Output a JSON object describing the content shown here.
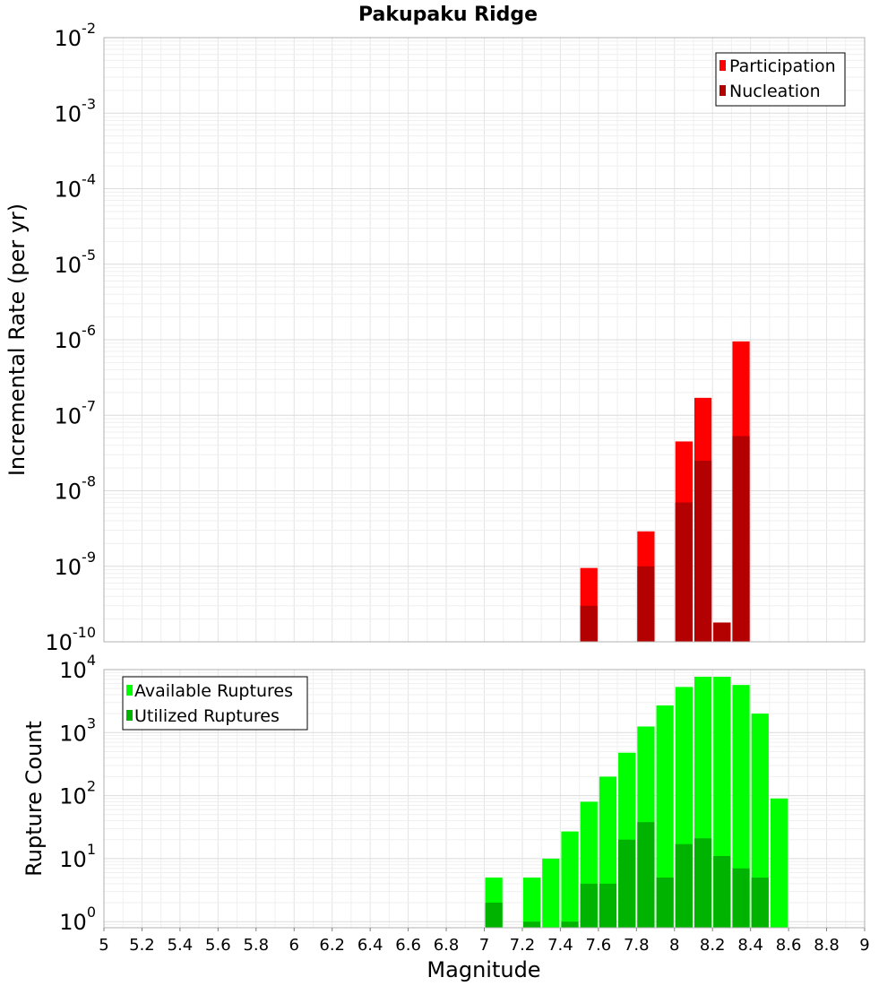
{
  "chart_data": [
    {
      "type": "bar",
      "title": "Pakupaku Ridge",
      "xlabel": "",
      "ylabel": "Incremental Rate (per yr)",
      "y_scale": "log",
      "ylim": [
        1e-10,
        0.01
      ],
      "xlim": [
        5,
        9
      ],
      "grid": true,
      "legend_position": "top-right",
      "yticks": [
        {
          "base": "10",
          "exp": "-2"
        },
        {
          "base": "10",
          "exp": "-3"
        },
        {
          "base": "10",
          "exp": "-4"
        },
        {
          "base": "10",
          "exp": "-5"
        },
        {
          "base": "10",
          "exp": "-6"
        },
        {
          "base": "10",
          "exp": "-7"
        },
        {
          "base": "10",
          "exp": "-8"
        },
        {
          "base": "10",
          "exp": "-9"
        },
        {
          "base": "10",
          "exp": "-10"
        }
      ],
      "bin_width": 0.1,
      "series": [
        {
          "name": "Participation",
          "color": "#ff0000",
          "x": [
            7.55,
            7.85,
            8.05,
            8.15,
            8.25,
            8.35
          ],
          "values": [
            9.5e-10,
            2.9e-09,
            4.5e-08,
            1.7e-07,
            1.8e-10,
            9.5e-07
          ]
        },
        {
          "name": "Nucleation",
          "color": "#b30000",
          "x": [
            7.55,
            7.85,
            8.05,
            8.15,
            8.25,
            8.35
          ],
          "values": [
            3e-10,
            1e-09,
            7e-09,
            2.5e-08,
            1.8e-10,
            5.3e-08
          ]
        }
      ]
    },
    {
      "type": "bar",
      "title": "",
      "xlabel": "Magnitude",
      "ylabel": "Rupture Count",
      "y_scale": "log",
      "ylim": [
        0.8,
        10000
      ],
      "xlim": [
        5,
        9
      ],
      "grid": true,
      "legend_position": "top-left",
      "yticks": [
        {
          "base": "10",
          "exp": "4"
        },
        {
          "base": "10",
          "exp": "3"
        },
        {
          "base": "10",
          "exp": "2"
        },
        {
          "base": "10",
          "exp": "1"
        },
        {
          "base": "10",
          "exp": "0"
        }
      ],
      "xticks": [
        "5",
        "5.2",
        "5.4",
        "5.6",
        "5.8",
        "6",
        "6.2",
        "6.4",
        "6.6",
        "6.8",
        "7",
        "7.2",
        "7.4",
        "7.6",
        "7.8",
        "8",
        "8.2",
        "8.4",
        "8.6",
        "8.8",
        "9"
      ],
      "bin_width": 0.1,
      "series": [
        {
          "name": "Available Ruptures",
          "color": "#00ff00",
          "x": [
            7.05,
            7.25,
            7.35,
            7.45,
            7.55,
            7.65,
            7.75,
            7.85,
            7.95,
            8.05,
            8.15,
            8.25,
            8.35,
            8.45,
            8.55
          ],
          "values": [
            5,
            5,
            10,
            27,
            80,
            200,
            480,
            1250,
            2700,
            5300,
            7700,
            7700,
            5700,
            2000,
            90
          ]
        },
        {
          "name": "Utilized Ruptures",
          "color": "#00b300",
          "x": [
            7.05,
            7.25,
            7.45,
            7.55,
            7.65,
            7.75,
            7.85,
            7.95,
            8.05,
            8.15,
            8.25,
            8.35,
            8.45
          ],
          "values": [
            2,
            1,
            1,
            4,
            4,
            20,
            38,
            5,
            17,
            21,
            11,
            7,
            5
          ]
        }
      ]
    }
  ]
}
